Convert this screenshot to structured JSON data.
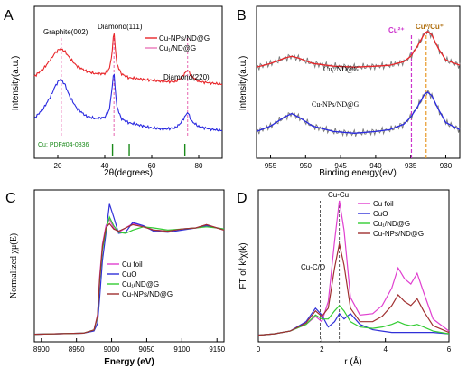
{
  "panels": {
    "A": {
      "letter": "A",
      "xlabel": "2θ(degrees)",
      "ylabel": "Intensity(a.u.)",
      "xticks": [
        "20",
        "40",
        "60",
        "80"
      ],
      "peak_labels": [
        "Graphite(002)",
        "Diamond(111)",
        "Diamond(220)"
      ],
      "legend": [
        "Cu-NPs/ND@G",
        "Cu₁/ND@G"
      ],
      "reference": "Cu: PDF#04-0836",
      "colors": {
        "red": "#e8262a",
        "blue": "#2a2ae0",
        "pink": "#e0409c",
        "green": "#1a8a1a"
      }
    },
    "B": {
      "letter": "B",
      "xlabel": "Binding energy(eV)",
      "ylabel": "Intensity(a.u.)",
      "xticks": [
        "955",
        "950",
        "945",
        "940",
        "935",
        "930"
      ],
      "curve_labels": [
        "Cu₁/ND@G",
        "Cu-NPs/ND@G"
      ],
      "ox_labels": [
        "Cu²⁺",
        "Cu⁰/Cu⁺"
      ],
      "colors": {
        "raw": "#7a7a7a",
        "red": "#e8262a",
        "blue": "#2a2ae0",
        "magenta": "#cc33cc",
        "orange": "#e89a2a"
      }
    },
    "C": {
      "letter": "C",
      "xlabel": "Energy (eV)",
      "ylabel": "Normalized χμ(E)",
      "xticks": [
        "8900",
        "8950",
        "9000",
        "9050",
        "9100",
        "9150"
      ],
      "legend": [
        "Cu foil",
        "CuO",
        "Cu₁/ND@G",
        "Cu-NPs/ND@G"
      ],
      "colors": {
        "foil": "#e040d0",
        "cuo": "#3030d8",
        "cu1": "#33cc33",
        "nps": "#a03030"
      }
    },
    "D": {
      "letter": "D",
      "xlabel": "r (Å)",
      "ylabel": "FT of k³χ(k)",
      "xticks": [
        "0",
        "2",
        "4",
        "6"
      ],
      "annotations": [
        "Cu-Cu",
        "Cu-C/O"
      ],
      "legend": [
        "Cu foil",
        "CuO",
        "Cu₁/ND@G",
        "Cu-NPs/ND@G"
      ],
      "colors": {
        "foil": "#e040d0",
        "cuo": "#3030d8",
        "cu1": "#33cc33",
        "nps": "#a03030"
      }
    }
  },
  "chart_data": [
    {
      "type": "line",
      "panel": "A",
      "xlabel": "2θ(degrees)",
      "ylabel": "Intensity(a.u.)",
      "xlim": [
        10,
        90
      ],
      "peak_positions_deg": {
        "Graphite(002)": 21.5,
        "Diamond(111)": 43.9,
        "Diamond(220)": 75.3
      },
      "reference_sticks_deg": [
        43.3,
        50.4,
        74.1
      ],
      "series": [
        {
          "name": "Cu-NPs/ND@G",
          "color": "#e8262a",
          "x": [
            10,
            14,
            17,
            19,
            21,
            23,
            25,
            28,
            32,
            36,
            40,
            42,
            43,
            43.9,
            45,
            47,
            50,
            55,
            60,
            65,
            70,
            72,
            74,
            75.3,
            77,
            80,
            85,
            90
          ],
          "y": [
            0.62,
            0.68,
            0.75,
            0.8,
            0.83,
            0.81,
            0.76,
            0.7,
            0.66,
            0.64,
            0.64,
            0.68,
            0.78,
            0.97,
            0.72,
            0.64,
            0.61,
            0.6,
            0.59,
            0.58,
            0.58,
            0.6,
            0.64,
            0.67,
            0.62,
            0.58,
            0.57,
            0.56
          ]
        },
        {
          "name": "Cu₁/ND@G",
          "color": "#2a2ae0",
          "x": [
            10,
            14,
            17,
            19,
            21,
            23,
            25,
            28,
            32,
            36,
            40,
            42,
            43,
            43.9,
            45,
            47,
            50,
            55,
            60,
            65,
            70,
            72,
            74,
            75.3,
            77,
            80,
            85,
            90
          ],
          "y": [
            0.3,
            0.38,
            0.47,
            0.55,
            0.6,
            0.56,
            0.47,
            0.38,
            0.32,
            0.3,
            0.31,
            0.37,
            0.52,
            0.66,
            0.4,
            0.3,
            0.27,
            0.25,
            0.23,
            0.22,
            0.23,
            0.26,
            0.31,
            0.35,
            0.28,
            0.24,
            0.22,
            0.21
          ]
        }
      ]
    },
    {
      "type": "line",
      "panel": "B",
      "xlabel": "Binding energy(eV)",
      "ylabel": "Intensity(a.u.)",
      "xlim": [
        957,
        928
      ],
      "x_reversed": true,
      "reference_lines_eV": {
        "Cu²⁺": 934.9,
        "Cu⁰/Cu⁺": 932.8
      },
      "series": [
        {
          "name": "Cu₁/ND@G",
          "color": "#e8262a",
          "x": [
            957,
            955,
            953,
            952,
            951,
            949,
            946,
            943,
            940,
            938,
            936,
            935,
            934,
            933,
            932.6,
            932,
            931,
            930,
            928
          ],
          "y": [
            0.66,
            0.68,
            0.71,
            0.72,
            0.71,
            0.68,
            0.665,
            0.66,
            0.665,
            0.67,
            0.69,
            0.72,
            0.78,
            0.85,
            0.86,
            0.84,
            0.76,
            0.7,
            0.67
          ]
        },
        {
          "name": "Cu-NPs/ND@G",
          "color": "#2a2ae0",
          "x": [
            957,
            955,
            953,
            952,
            951,
            949,
            946,
            943,
            940,
            938,
            936,
            935,
            934,
            933,
            932.6,
            932,
            931,
            930,
            928
          ],
          "y": [
            0.3,
            0.33,
            0.38,
            0.4,
            0.38,
            0.33,
            0.3,
            0.29,
            0.3,
            0.31,
            0.34,
            0.38,
            0.44,
            0.51,
            0.52,
            0.5,
            0.42,
            0.35,
            0.31
          ]
        }
      ]
    },
    {
      "type": "line",
      "panel": "C",
      "xlabel": "Energy (eV)",
      "ylabel": "Normalized χμ(E)",
      "xlim": [
        8890,
        9160
      ],
      "series": [
        {
          "name": "Cu foil",
          "color": "#e040d0",
          "x": [
            8890,
            8960,
            8975,
            8980,
            8983,
            8987,
            8992,
            8997,
            9003,
            9010,
            9020,
            9030,
            9045,
            9060,
            9080,
            9100,
            9120,
            9135,
            9150,
            9160
          ],
          "y": [
            0.02,
            0.03,
            0.06,
            0.2,
            0.55,
            0.85,
            1.02,
            1.08,
            1.0,
            0.96,
            1.0,
            1.04,
            1.02,
            0.98,
            0.97,
            0.99,
            1.0,
            1.03,
            1.0,
            0.98
          ]
        },
        {
          "name": "CuO",
          "color": "#3030d8",
          "x": [
            8890,
            8960,
            8975,
            8980,
            8983,
            8987,
            8992,
            8997,
            9003,
            9010,
            9020,
            9030,
            9045,
            9060,
            9080,
            9100,
            9120,
            9135,
            9150,
            9160
          ],
          "y": [
            0.02,
            0.03,
            0.05,
            0.12,
            0.35,
            0.7,
            0.95,
            1.22,
            1.1,
            0.95,
            0.96,
            1.05,
            1.02,
            0.97,
            0.96,
            0.98,
            1.0,
            1.02,
            1.0,
            0.99
          ]
        },
        {
          "name": "Cu₁/ND@G",
          "color": "#33cc33",
          "x": [
            8890,
            8960,
            8975,
            8980,
            8983,
            8987,
            8992,
            8997,
            9003,
            9010,
            9020,
            9030,
            9045,
            9060,
            9080,
            9100,
            9120,
            9135,
            9150,
            9160
          ],
          "y": [
            0.02,
            0.03,
            0.06,
            0.18,
            0.5,
            0.8,
            0.98,
            1.1,
            1.02,
            0.96,
            0.95,
            0.98,
            1.01,
            1.0,
            0.98,
            0.99,
            1.0,
            1.01,
            1.0,
            0.99
          ]
        },
        {
          "name": "Cu-NPs/ND@G",
          "color": "#a03030",
          "x": [
            8890,
            8960,
            8975,
            8980,
            8983,
            8987,
            8992,
            8997,
            9003,
            9010,
            9020,
            9030,
            9045,
            9060,
            9080,
            9100,
            9120,
            9135,
            9150,
            9160
          ],
          "y": [
            0.02,
            0.03,
            0.06,
            0.19,
            0.52,
            0.83,
            1.0,
            1.04,
            0.99,
            0.97,
            1.0,
            1.03,
            1.01,
            0.98,
            0.97,
            0.99,
            1.0,
            1.03,
            1.0,
            0.98
          ]
        }
      ]
    },
    {
      "type": "line",
      "panel": "D",
      "xlabel": "r (Å)",
      "ylabel": "FT of k³χ(k)",
      "xlim": [
        0,
        6
      ],
      "reference_lines_A": {
        "Cu-C/O": 1.95,
        "Cu-Cu": 2.55
      },
      "series": [
        {
          "name": "Cu foil",
          "color": "#e040d0",
          "x": [
            0,
            0.5,
            1.0,
            1.5,
            1.8,
            2.0,
            2.2,
            2.4,
            2.55,
            2.7,
            2.9,
            3.2,
            3.6,
            3.9,
            4.2,
            4.4,
            4.6,
            4.8,
            5.0,
            5.2,
            5.5,
            6.0
          ],
          "y": [
            0.0,
            0.01,
            0.03,
            0.08,
            0.14,
            0.1,
            0.25,
            0.7,
            1.0,
            0.78,
            0.28,
            0.15,
            0.16,
            0.22,
            0.35,
            0.5,
            0.42,
            0.38,
            0.46,
            0.32,
            0.12,
            0.03
          ]
        },
        {
          "name": "CuO",
          "color": "#3030d8",
          "x": [
            0,
            0.5,
            1.0,
            1.5,
            1.8,
            2.0,
            2.2,
            2.4,
            2.55,
            2.7,
            2.9,
            3.2,
            3.6,
            3.9,
            4.2,
            4.4,
            4.6,
            4.8,
            5.0,
            5.2,
            5.5,
            6.0
          ],
          "y": [
            0.0,
            0.01,
            0.03,
            0.1,
            0.2,
            0.15,
            0.06,
            0.1,
            0.16,
            0.12,
            0.16,
            0.08,
            0.04,
            0.03,
            0.02,
            0.02,
            0.02,
            0.02,
            0.02,
            0.02,
            0.02,
            0.01
          ]
        },
        {
          "name": "Cu₁/ND@G",
          "color": "#33cc33",
          "x": [
            0,
            0.5,
            1.0,
            1.5,
            1.8,
            2.0,
            2.2,
            2.4,
            2.55,
            2.7,
            2.9,
            3.2,
            3.6,
            3.9,
            4.2,
            4.4,
            4.6,
            4.8,
            5.0,
            5.2,
            5.5,
            6.0
          ],
          "y": [
            0.0,
            0.01,
            0.03,
            0.08,
            0.15,
            0.12,
            0.12,
            0.18,
            0.22,
            0.18,
            0.1,
            0.06,
            0.05,
            0.06,
            0.08,
            0.1,
            0.08,
            0.07,
            0.08,
            0.06,
            0.03,
            0.01
          ]
        },
        {
          "name": "Cu-NPs/ND@G",
          "color": "#a03030",
          "x": [
            0,
            0.5,
            1.0,
            1.5,
            1.8,
            2.0,
            2.2,
            2.4,
            2.55,
            2.7,
            2.9,
            3.2,
            3.6,
            3.9,
            4.2,
            4.4,
            4.6,
            4.8,
            5.0,
            5.2,
            5.5,
            6.0
          ],
          "y": [
            0.0,
            0.01,
            0.03,
            0.09,
            0.18,
            0.14,
            0.2,
            0.5,
            0.68,
            0.52,
            0.2,
            0.1,
            0.1,
            0.14,
            0.22,
            0.3,
            0.25,
            0.22,
            0.27,
            0.18,
            0.07,
            0.02
          ]
        }
      ]
    }
  ]
}
